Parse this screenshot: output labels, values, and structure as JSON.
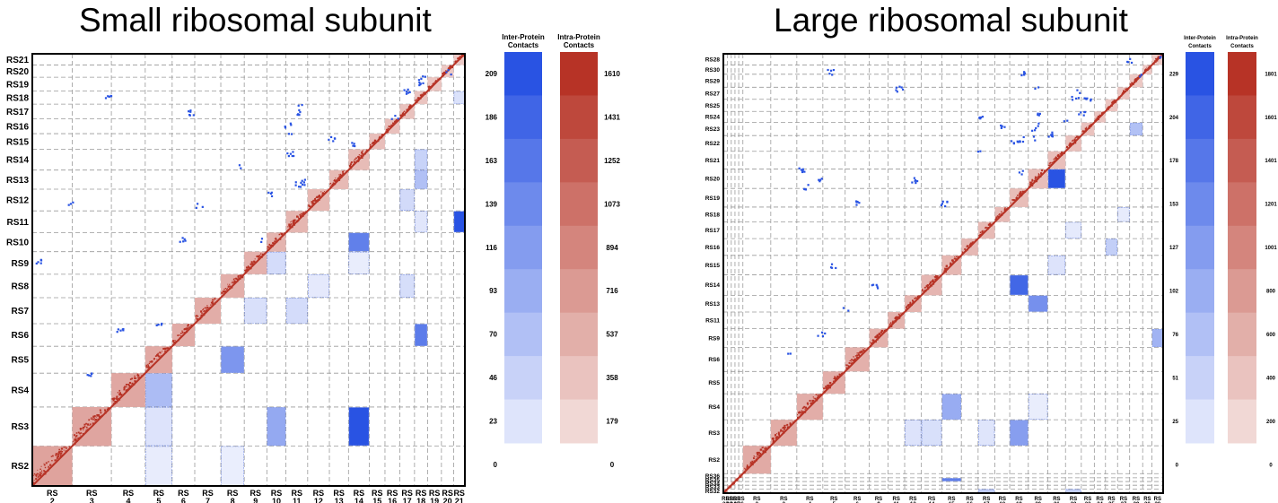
{
  "panels": [
    {
      "title": "Small ribosomal subunit"
    },
    {
      "title": "Large ribosomal subunit"
    }
  ],
  "colors": {
    "intra": "#b73326",
    "inter_max": "#2953e3",
    "intra_max": "#b73326"
  },
  "chart_data": [
    {
      "type": "heatmap",
      "title": "Small ribosomal subunit",
      "proteins": [
        "RS2",
        "RS3",
        "RS4",
        "RS5",
        "RS6",
        "RS7",
        "RS8",
        "RS9",
        "RS10",
        "RS11",
        "RS12",
        "RS13",
        "RS14",
        "RS15",
        "RS16",
        "RS17",
        "RS18",
        "RS19",
        "RS20",
        "RS21"
      ],
      "x_labels": [
        "RS 2",
        "RS 3",
        "RS 4",
        "RS 5",
        "RS 6",
        "RS 7",
        "RS 8",
        "RS 9",
        "RS 10",
        "RS 11",
        "RS 12",
        "RS 13",
        "RS 14",
        "RS 15",
        "RS 16",
        "RS 17",
        "RS 18",
        "RS 19",
        "RS 20",
        "RS 21"
      ],
      "inter_cells": [
        {
          "row": "RS3",
          "col": "RS14",
          "value": 209
        },
        {
          "row": "RS10",
          "col": "RS14",
          "value": 150
        },
        {
          "row": "RS11",
          "col": "RS21",
          "value": 209
        },
        {
          "row": "RS5",
          "col": "RS8",
          "value": 120
        },
        {
          "row": "RS6",
          "col": "RS18",
          "value": 155
        },
        {
          "row": "RS3",
          "col": "RS10",
          "value": 95
        },
        {
          "row": "RS4",
          "col": "RS5",
          "value": 70
        },
        {
          "row": "RS13",
          "col": "RS18",
          "value": 65
        },
        {
          "row": "RS14",
          "col": "RS18",
          "value": 40
        },
        {
          "row": "RS12",
          "col": "RS17",
          "value": 30
        },
        {
          "row": "RS9",
          "col": "RS10",
          "value": 28
        },
        {
          "row": "RS7",
          "col": "RS11",
          "value": 28
        },
        {
          "row": "RS7",
          "col": "RS9",
          "value": 22
        },
        {
          "row": "RS8",
          "col": "RS12",
          "value": 10
        },
        {
          "row": "RS8",
          "col": "RS17",
          "value": 25
        },
        {
          "row": "RS3",
          "col": "RS5",
          "value": 18
        },
        {
          "row": "RS11",
          "col": "RS18",
          "value": 14
        },
        {
          "row": "RS18",
          "col": "RS21",
          "value": 20
        },
        {
          "row": "RS2",
          "col": "RS5",
          "value": 6
        },
        {
          "row": "RS2",
          "col": "RS8",
          "value": 4
        },
        {
          "row": "RS9",
          "col": "RS14",
          "value": 5
        }
      ],
      "inter_legend": {
        "label": "Inter-Protein Contacts",
        "ticks": [
          209,
          186,
          163,
          139,
          116,
          93,
          70,
          46,
          23,
          0
        ]
      },
      "intra_legend": {
        "label": "Intra-Protein Contacts",
        "ticks": [
          1610,
          1431,
          1252,
          1073,
          894,
          716,
          537,
          358,
          179,
          0
        ]
      }
    },
    {
      "type": "heatmap",
      "title": "Large ribosomal subunit",
      "proteins": [
        "RS32",
        "RS33",
        "RS34",
        "RS35",
        "RS36",
        "RS2",
        "RS3",
        "RS4",
        "RS5",
        "RS6",
        "RS9",
        "RS11",
        "RS13",
        "RS14",
        "RS15",
        "RS16",
        "RS17",
        "RS18",
        "RS19",
        "RS20",
        "RS21",
        "RS22",
        "RS23",
        "RS24",
        "RS25",
        "RS27",
        "RS29",
        "RS30",
        "RS28"
      ],
      "x_labels": [
        "RS 32",
        "RS 33",
        "RS 34",
        "RS 35",
        "RS 36",
        "RS 2",
        "RS 3",
        "RS 4",
        "RS 5",
        "RS 6",
        "RS 9",
        "RS 11",
        "RS 13",
        "RS 14",
        "RS 15",
        "RS 16",
        "RS 17",
        "RS 18",
        "RS 19",
        "RS 20",
        "RS 21",
        "RS 22",
        "RS 23",
        "RS 24",
        "RS 25",
        "RS 27",
        "RS 29",
        "RS 30",
        "RS 28"
      ],
      "inter_cells": [
        {
          "row": "RS20",
          "col": "RS21",
          "value": 229
        },
        {
          "row": "RS14",
          "col": "RS19",
          "value": 200
        },
        {
          "row": "RS35",
          "col": "RS15",
          "value": 165
        },
        {
          "row": "RS13",
          "col": "RS20",
          "value": 140
        },
        {
          "row": "RS3",
          "col": "RS19",
          "value": 120
        },
        {
          "row": "RS4",
          "col": "RS15",
          "value": 100
        },
        {
          "row": "RS9",
          "col": "RS28",
          "value": 90
        },
        {
          "row": "RS23",
          "col": "RS29",
          "value": 70
        },
        {
          "row": "RS16",
          "col": "RS25",
          "value": 50
        },
        {
          "row": "RS32",
          "col": "RS17",
          "value": 55
        },
        {
          "row": "RS32",
          "col": "RS22",
          "value": 50
        },
        {
          "row": "RS3",
          "col": "RS14",
          "value": 25
        },
        {
          "row": "RS3",
          "col": "RS17",
          "value": 18
        },
        {
          "row": "RS3",
          "col": "RS13",
          "value": 20
        },
        {
          "row": "RS15",
          "col": "RS21",
          "value": 20
        },
        {
          "row": "RS17",
          "col": "RS22",
          "value": 10
        },
        {
          "row": "RS18",
          "col": "RS27",
          "value": 8
        },
        {
          "row": "RS4",
          "col": "RS20",
          "value": 6
        }
      ],
      "inter_legend": {
        "label": "Inter-Protein Contacts",
        "ticks": [
          229,
          204,
          178,
          153,
          127,
          102,
          76,
          51,
          25,
          0
        ]
      },
      "intra_legend": {
        "label": "Intra-Protein Contacts",
        "ticks": [
          1801,
          1601,
          1401,
          1201,
          1001,
          800,
          600,
          400,
          200,
          0
        ]
      }
    }
  ]
}
